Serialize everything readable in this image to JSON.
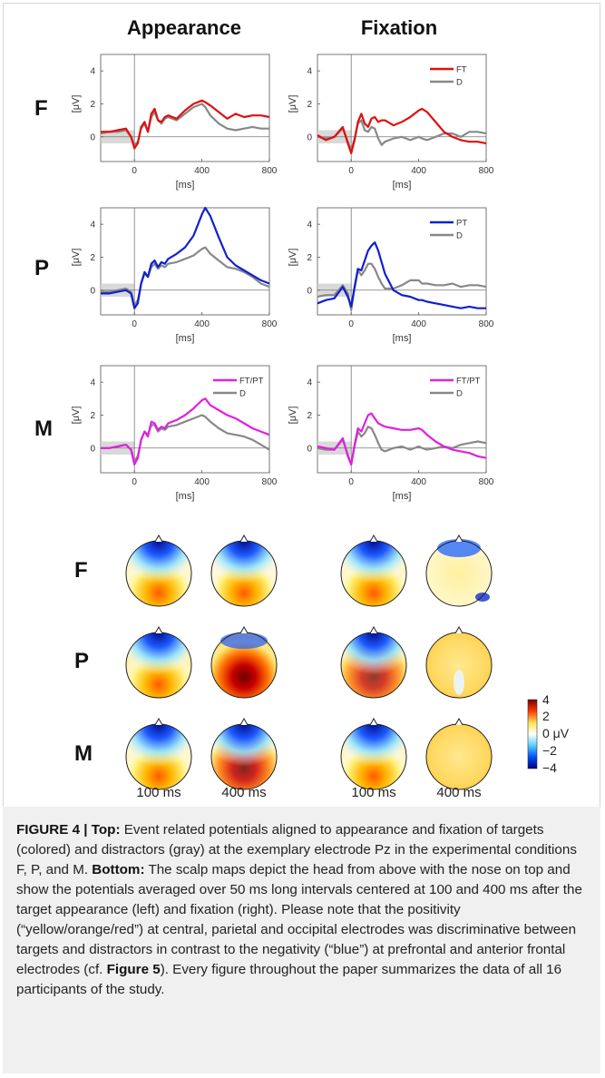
{
  "figure": {
    "column_titles": [
      "Appearance",
      "Fixation"
    ],
    "row_labels": [
      "F",
      "P",
      "M"
    ],
    "time_labels": [
      "100 ms",
      "400 ms"
    ],
    "colorbar": {
      "ticks": [
        "4",
        "2",
        "0 μV",
        "−2",
        "−4"
      ],
      "colors": [
        "#7a0000",
        "#ff3c00",
        "#ffe65a",
        "#ffffff",
        "#5ad2ff",
        "#0050ff",
        "#00007a"
      ]
    }
  },
  "chart_data": [
    {
      "type": "line",
      "panel": "Appearance F",
      "xlabel": "[ms]",
      "ylabel": "[μV]",
      "xticks": [
        "0",
        "400",
        "800"
      ],
      "yticks": [
        "0",
        "2",
        "4"
      ],
      "xlim": [
        -200,
        800
      ],
      "ylim": [
        -1.5,
        5
      ],
      "x": [
        -200,
        -150,
        -100,
        -50,
        -20,
        0,
        20,
        40,
        60,
        80,
        100,
        120,
        140,
        160,
        180,
        200,
        250,
        300,
        350,
        400,
        420,
        450,
        500,
        550,
        600,
        650,
        700,
        750,
        800
      ],
      "series": [
        {
          "name": "",
          "color": "#e01010",
          "values": [
            0.3,
            0.3,
            0.4,
            0.5,
            0.0,
            -0.7,
            -0.4,
            0.6,
            0.9,
            0.3,
            1.4,
            1.7,
            1.0,
            0.9,
            1.2,
            1.3,
            1.1,
            1.6,
            2.0,
            2.2,
            2.1,
            1.9,
            1.5,
            1.1,
            1.4,
            1.2,
            1.3,
            1.3,
            1.2
          ]
        },
        {
          "name": "",
          "color": "#888888",
          "values": [
            0.2,
            0.3,
            0.3,
            0.4,
            0.0,
            -0.5,
            -0.3,
            0.5,
            0.8,
            0.3,
            1.2,
            1.5,
            1.0,
            0.8,
            1.1,
            1.2,
            1.0,
            1.4,
            1.8,
            2.0,
            1.8,
            1.3,
            0.8,
            0.5,
            0.4,
            0.5,
            0.6,
            0.5,
            0.5
          ]
        }
      ]
    },
    {
      "type": "line",
      "panel": "Fixation F",
      "xlabel": "[ms]",
      "ylabel": "[μV]",
      "xticks": [
        "0",
        "400",
        "800"
      ],
      "yticks": [
        "0",
        "2",
        "4"
      ],
      "xlim": [
        -200,
        800
      ],
      "ylim": [
        -1.5,
        5
      ],
      "x": [
        -200,
        -150,
        -100,
        -50,
        -20,
        0,
        20,
        40,
        60,
        80,
        100,
        120,
        140,
        160,
        180,
        200,
        250,
        300,
        350,
        400,
        420,
        450,
        500,
        550,
        600,
        650,
        700,
        750,
        800
      ],
      "series": [
        {
          "name": "FT",
          "color": "#e01010",
          "values": [
            0.1,
            -0.2,
            0.0,
            0.6,
            -0.4,
            -1.0,
            -0.2,
            0.9,
            1.4,
            0.8,
            0.6,
            1.1,
            1.2,
            0.9,
            1.0,
            1.0,
            0.7,
            0.9,
            1.2,
            1.6,
            1.7,
            1.5,
            0.9,
            0.3,
            0.0,
            -0.2,
            -0.3,
            -0.3,
            -0.4
          ]
        },
        {
          "name": "D",
          "color": "#888888",
          "values": [
            0.0,
            -0.1,
            0.0,
            0.5,
            -0.3,
            -0.8,
            -0.1,
            0.8,
            1.0,
            0.4,
            0.3,
            0.6,
            0.5,
            -0.1,
            -0.5,
            -0.3,
            -0.1,
            0.0,
            -0.2,
            0.0,
            -0.1,
            -0.2,
            0.0,
            0.2,
            0.2,
            0.0,
            0.3,
            0.3,
            0.2
          ]
        }
      ]
    },
    {
      "type": "line",
      "panel": "Appearance P",
      "xlabel": "[ms]",
      "ylabel": "[μV]",
      "xticks": [
        "0",
        "400",
        "800"
      ],
      "yticks": [
        "0",
        "2",
        "4"
      ],
      "xlim": [
        -200,
        800
      ],
      "ylim": [
        -1.5,
        5
      ],
      "x": [
        -200,
        -150,
        -100,
        -50,
        -20,
        0,
        20,
        40,
        60,
        80,
        100,
        120,
        140,
        160,
        180,
        200,
        250,
        300,
        350,
        400,
        420,
        450,
        500,
        550,
        600,
        650,
        700,
        750,
        800
      ],
      "series": [
        {
          "name": "",
          "color": "#1020d0",
          "values": [
            -0.2,
            -0.2,
            -0.1,
            0.0,
            -0.2,
            -1.1,
            -0.8,
            0.4,
            1.1,
            0.8,
            1.6,
            1.8,
            1.4,
            1.7,
            1.6,
            1.9,
            2.2,
            2.6,
            3.3,
            4.6,
            5.0,
            4.5,
            3.2,
            2.0,
            1.5,
            1.2,
            0.9,
            0.6,
            0.4
          ]
        },
        {
          "name": "",
          "color": "#888888",
          "values": [
            -0.1,
            -0.1,
            0.0,
            0.1,
            -0.1,
            -0.9,
            -0.6,
            0.4,
            1.0,
            0.8,
            1.4,
            1.6,
            1.3,
            1.5,
            1.4,
            1.6,
            1.7,
            1.9,
            2.1,
            2.5,
            2.6,
            2.2,
            1.8,
            1.4,
            1.3,
            1.1,
            0.8,
            0.4,
            0.2
          ]
        }
      ]
    },
    {
      "type": "line",
      "panel": "Fixation P",
      "xlabel": "[ms]",
      "ylabel": "[μV]",
      "xticks": [
        "0",
        "400",
        "800"
      ],
      "yticks": [
        "0",
        "2",
        "4"
      ],
      "xlim": [
        -200,
        800
      ],
      "ylim": [
        -1.5,
        5
      ],
      "x": [
        -200,
        -150,
        -100,
        -50,
        -20,
        0,
        20,
        40,
        60,
        80,
        100,
        120,
        140,
        160,
        180,
        200,
        250,
        300,
        350,
        400,
        420,
        450,
        500,
        550,
        600,
        650,
        700,
        750,
        800
      ],
      "series": [
        {
          "name": "PT",
          "color": "#1020d0",
          "values": [
            -0.8,
            -0.6,
            -0.5,
            0.2,
            -0.4,
            -1.0,
            0.2,
            1.3,
            1.2,
            1.8,
            2.4,
            2.7,
            2.9,
            2.4,
            1.7,
            1.0,
            0.0,
            -0.3,
            -0.4,
            -0.6,
            -0.6,
            -0.7,
            -0.8,
            -0.9,
            -1.0,
            -1.1,
            -1.0,
            -1.1,
            -1.1
          ]
        },
        {
          "name": "D",
          "color": "#888888",
          "values": [
            -0.4,
            -0.3,
            -0.3,
            0.3,
            -0.2,
            -1.2,
            0.1,
            1.2,
            0.9,
            1.2,
            1.6,
            1.6,
            1.3,
            0.8,
            0.4,
            0.1,
            0.1,
            0.3,
            0.6,
            0.6,
            0.4,
            0.4,
            0.3,
            0.3,
            0.4,
            0.2,
            0.3,
            0.3,
            0.2
          ]
        }
      ]
    },
    {
      "type": "line",
      "panel": "Appearance M",
      "xlabel": "[ms]",
      "ylabel": "[μV]",
      "xticks": [
        "0",
        "400",
        "800"
      ],
      "yticks": [
        "0",
        "2",
        "4"
      ],
      "xlim": [
        -200,
        800
      ],
      "ylim": [
        -1.5,
        5
      ],
      "x": [
        -200,
        -150,
        -100,
        -50,
        -20,
        0,
        20,
        40,
        60,
        80,
        100,
        120,
        140,
        160,
        180,
        200,
        250,
        300,
        350,
        400,
        420,
        450,
        500,
        550,
        600,
        650,
        700,
        750,
        800
      ],
      "series": [
        {
          "name": "FT/PT",
          "color": "#e020e0",
          "values": [
            0.0,
            0.0,
            0.1,
            0.2,
            -0.1,
            -1.0,
            -0.6,
            0.5,
            1.0,
            0.7,
            1.6,
            1.5,
            1.1,
            1.3,
            1.2,
            1.5,
            1.7,
            2.0,
            2.4,
            2.9,
            3.0,
            2.6,
            2.3,
            2.0,
            1.8,
            1.5,
            1.2,
            1.0,
            0.8
          ]
        },
        {
          "name": "D",
          "color": "#888888",
          "values": [
            0.0,
            0.0,
            0.1,
            0.2,
            -0.1,
            -0.8,
            -0.5,
            0.5,
            1.0,
            0.8,
            1.4,
            1.4,
            1.0,
            1.2,
            1.1,
            1.3,
            1.4,
            1.6,
            1.8,
            2.0,
            1.9,
            1.6,
            1.2,
            0.9,
            0.8,
            0.7,
            0.5,
            0.2,
            -0.1
          ]
        }
      ]
    },
    {
      "type": "line",
      "panel": "Fixation M",
      "xlabel": "[ms]",
      "ylabel": "[μV]",
      "xticks": [
        "0",
        "400",
        "800"
      ],
      "yticks": [
        "0",
        "2",
        "4"
      ],
      "xlim": [
        -200,
        800
      ],
      "ylim": [
        -1.5,
        5
      ],
      "x": [
        -200,
        -150,
        -100,
        -50,
        -20,
        0,
        20,
        40,
        60,
        80,
        100,
        120,
        140,
        160,
        180,
        200,
        250,
        300,
        350,
        400,
        420,
        450,
        500,
        550,
        600,
        650,
        700,
        750,
        800
      ],
      "series": [
        {
          "name": "FT/PT",
          "color": "#e020e0",
          "values": [
            0.1,
            0.0,
            -0.1,
            0.6,
            -0.5,
            -1.0,
            0.2,
            1.2,
            1.0,
            1.5,
            2.0,
            2.1,
            1.8,
            1.5,
            1.4,
            1.3,
            1.2,
            1.1,
            1.1,
            1.2,
            1.1,
            0.8,
            0.4,
            0.1,
            -0.1,
            -0.2,
            -0.3,
            -0.5,
            -0.6
          ]
        },
        {
          "name": "D",
          "color": "#888888",
          "values": [
            0.0,
            -0.1,
            -0.1,
            0.5,
            -0.4,
            -1.0,
            0.1,
            1.0,
            0.7,
            0.9,
            1.3,
            1.2,
            0.8,
            0.3,
            -0.1,
            -0.2,
            0.0,
            0.1,
            -0.1,
            0.1,
            0.0,
            -0.1,
            0.0,
            0.1,
            0.0,
            0.2,
            0.3,
            0.4,
            0.3
          ]
        }
      ]
    }
  ],
  "caption": {
    "figure_label": "FIGURE 4 | ",
    "top_label": "Top:",
    "top_text": " Event related potentials aligned to appearance and fixation of targets (colored) and distractors (gray) at the exemplary electrode Pz in the experimental conditions F, P, and M. ",
    "bottom_label": "Bottom:",
    "bottom_text_1": " The scalp maps depict the head from above with the nose on top and show the potentials averaged over 50 ms long intervals centered at 100 and 400 ms after the target appearance (left) and fixation (right). Please note that the positivity (“yellow/orange/red”) at central, parietal and occipital electrodes was discriminative between targets and distractors in contrast to the negativity (“blue”) at prefrontal and anterior frontal electrodes (cf. ",
    "figure_ref": "Figure 5",
    "bottom_text_2": "). Every figure throughout the paper summarizes the data of all 16 participants of the study."
  }
}
